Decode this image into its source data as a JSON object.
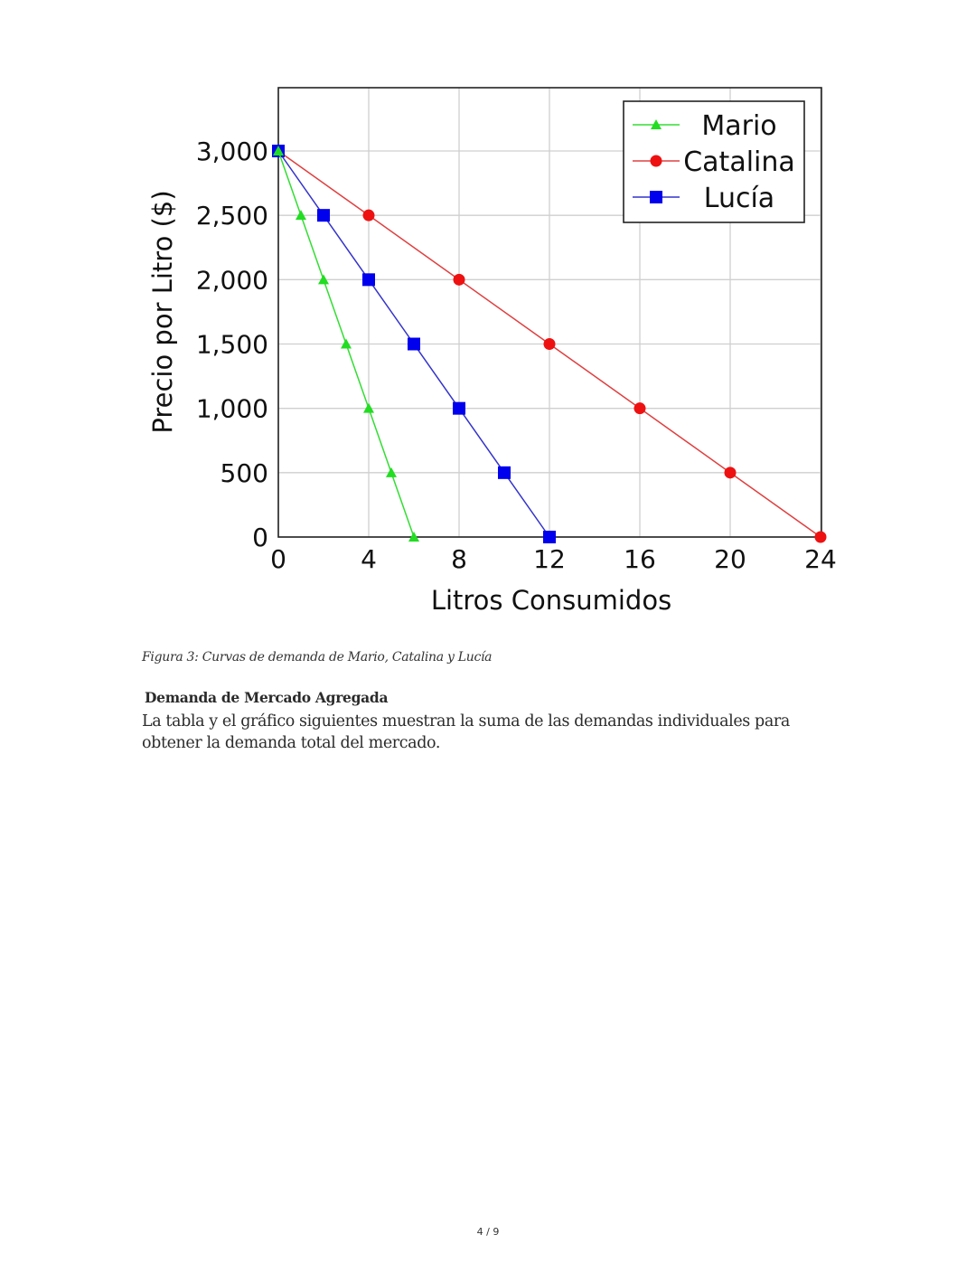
{
  "chart_data": {
    "type": "line",
    "title": "",
    "xlabel": "Litros Consumidos",
    "ylabel": "Precio por Litro ($)",
    "xlim": [
      0,
      24
    ],
    "ylim": [
      0,
      3250
    ],
    "x_ticks": [
      0,
      4,
      8,
      12,
      16,
      20,
      24
    ],
    "x_tick_labels": [
      "0",
      "4",
      "8",
      "12",
      "16",
      "20",
      "24"
    ],
    "y_ticks": [
      0,
      500,
      1000,
      1500,
      2000,
      2500,
      3000
    ],
    "y_tick_labels": [
      "0",
      "500",
      "1,000",
      "1,500",
      "2,000",
      "2,500",
      "3,000"
    ],
    "grid": true,
    "legend_position": "upper right",
    "series": [
      {
        "name": "Mario",
        "color": "#22dd22",
        "marker": "triangle",
        "x": [
          0,
          1,
          2,
          3,
          4,
          5,
          6
        ],
        "y": [
          3000,
          2500,
          2000,
          1500,
          1000,
          500,
          0
        ]
      },
      {
        "name": "Catalina",
        "color": "#ee1111",
        "marker": "circle",
        "x": [
          0,
          4,
          8,
          12,
          16,
          20,
          24
        ],
        "y": [
          3000,
          2500,
          2000,
          1500,
          1000,
          500,
          0
        ]
      },
      {
        "name": "Lucía",
        "color": "#0000ee",
        "marker": "square",
        "x": [
          0,
          2,
          4,
          6,
          8,
          10,
          12
        ],
        "y": [
          3000,
          2500,
          2000,
          1500,
          1000,
          500,
          0
        ]
      }
    ]
  },
  "document": {
    "caption": "Figura 3: Curvas de demanda de Mario, Catalina y Lucía",
    "section_heading": "Demanda de Mercado Agregada",
    "paragraph": "La tabla y el gráfico siguientes muestran la suma de las demandas individuales para obtener la demanda total del mercado.",
    "page_number": "4 / 9"
  }
}
